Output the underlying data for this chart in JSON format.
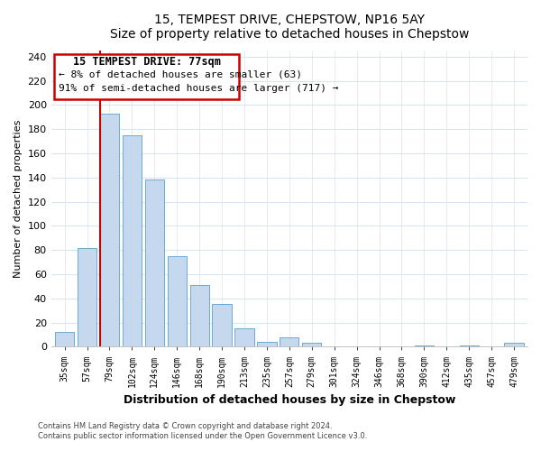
{
  "title": "15, TEMPEST DRIVE, CHEPSTOW, NP16 5AY",
  "subtitle": "Size of property relative to detached houses in Chepstow",
  "xlabel": "Distribution of detached houses by size in Chepstow",
  "ylabel": "Number of detached properties",
  "bar_labels": [
    "35sqm",
    "57sqm",
    "79sqm",
    "102sqm",
    "124sqm",
    "146sqm",
    "168sqm",
    "190sqm",
    "213sqm",
    "235sqm",
    "257sqm",
    "279sqm",
    "301sqm",
    "324sqm",
    "346sqm",
    "368sqm",
    "390sqm",
    "412sqm",
    "435sqm",
    "457sqm",
    "479sqm"
  ],
  "bar_values": [
    12,
    82,
    193,
    175,
    138,
    75,
    51,
    35,
    15,
    4,
    8,
    3,
    0,
    0,
    0,
    0,
    1,
    0,
    1,
    0,
    3
  ],
  "bar_color": "#c5d8ee",
  "bar_edge_color": "#6aaad4",
  "property_line_label": "15 TEMPEST DRIVE: 77sqm",
  "annotation_line1": "← 8% of detached houses are smaller (63)",
  "annotation_line2": "91% of semi-detached houses are larger (717) →",
  "annotation_box_color": "white",
  "annotation_box_edge": "#cc0000",
  "vline_color": "#cc0000",
  "ylim": [
    0,
    245
  ],
  "yticks": [
    0,
    20,
    40,
    60,
    80,
    100,
    120,
    140,
    160,
    180,
    200,
    220,
    240
  ],
  "footer1": "Contains HM Land Registry data © Crown copyright and database right 2024.",
  "footer2": "Contains public sector information licensed under the Open Government Licence v3.0.",
  "background_color": "#ffffff",
  "plot_background": "#ffffff",
  "grid_color": "#d8e4f0"
}
